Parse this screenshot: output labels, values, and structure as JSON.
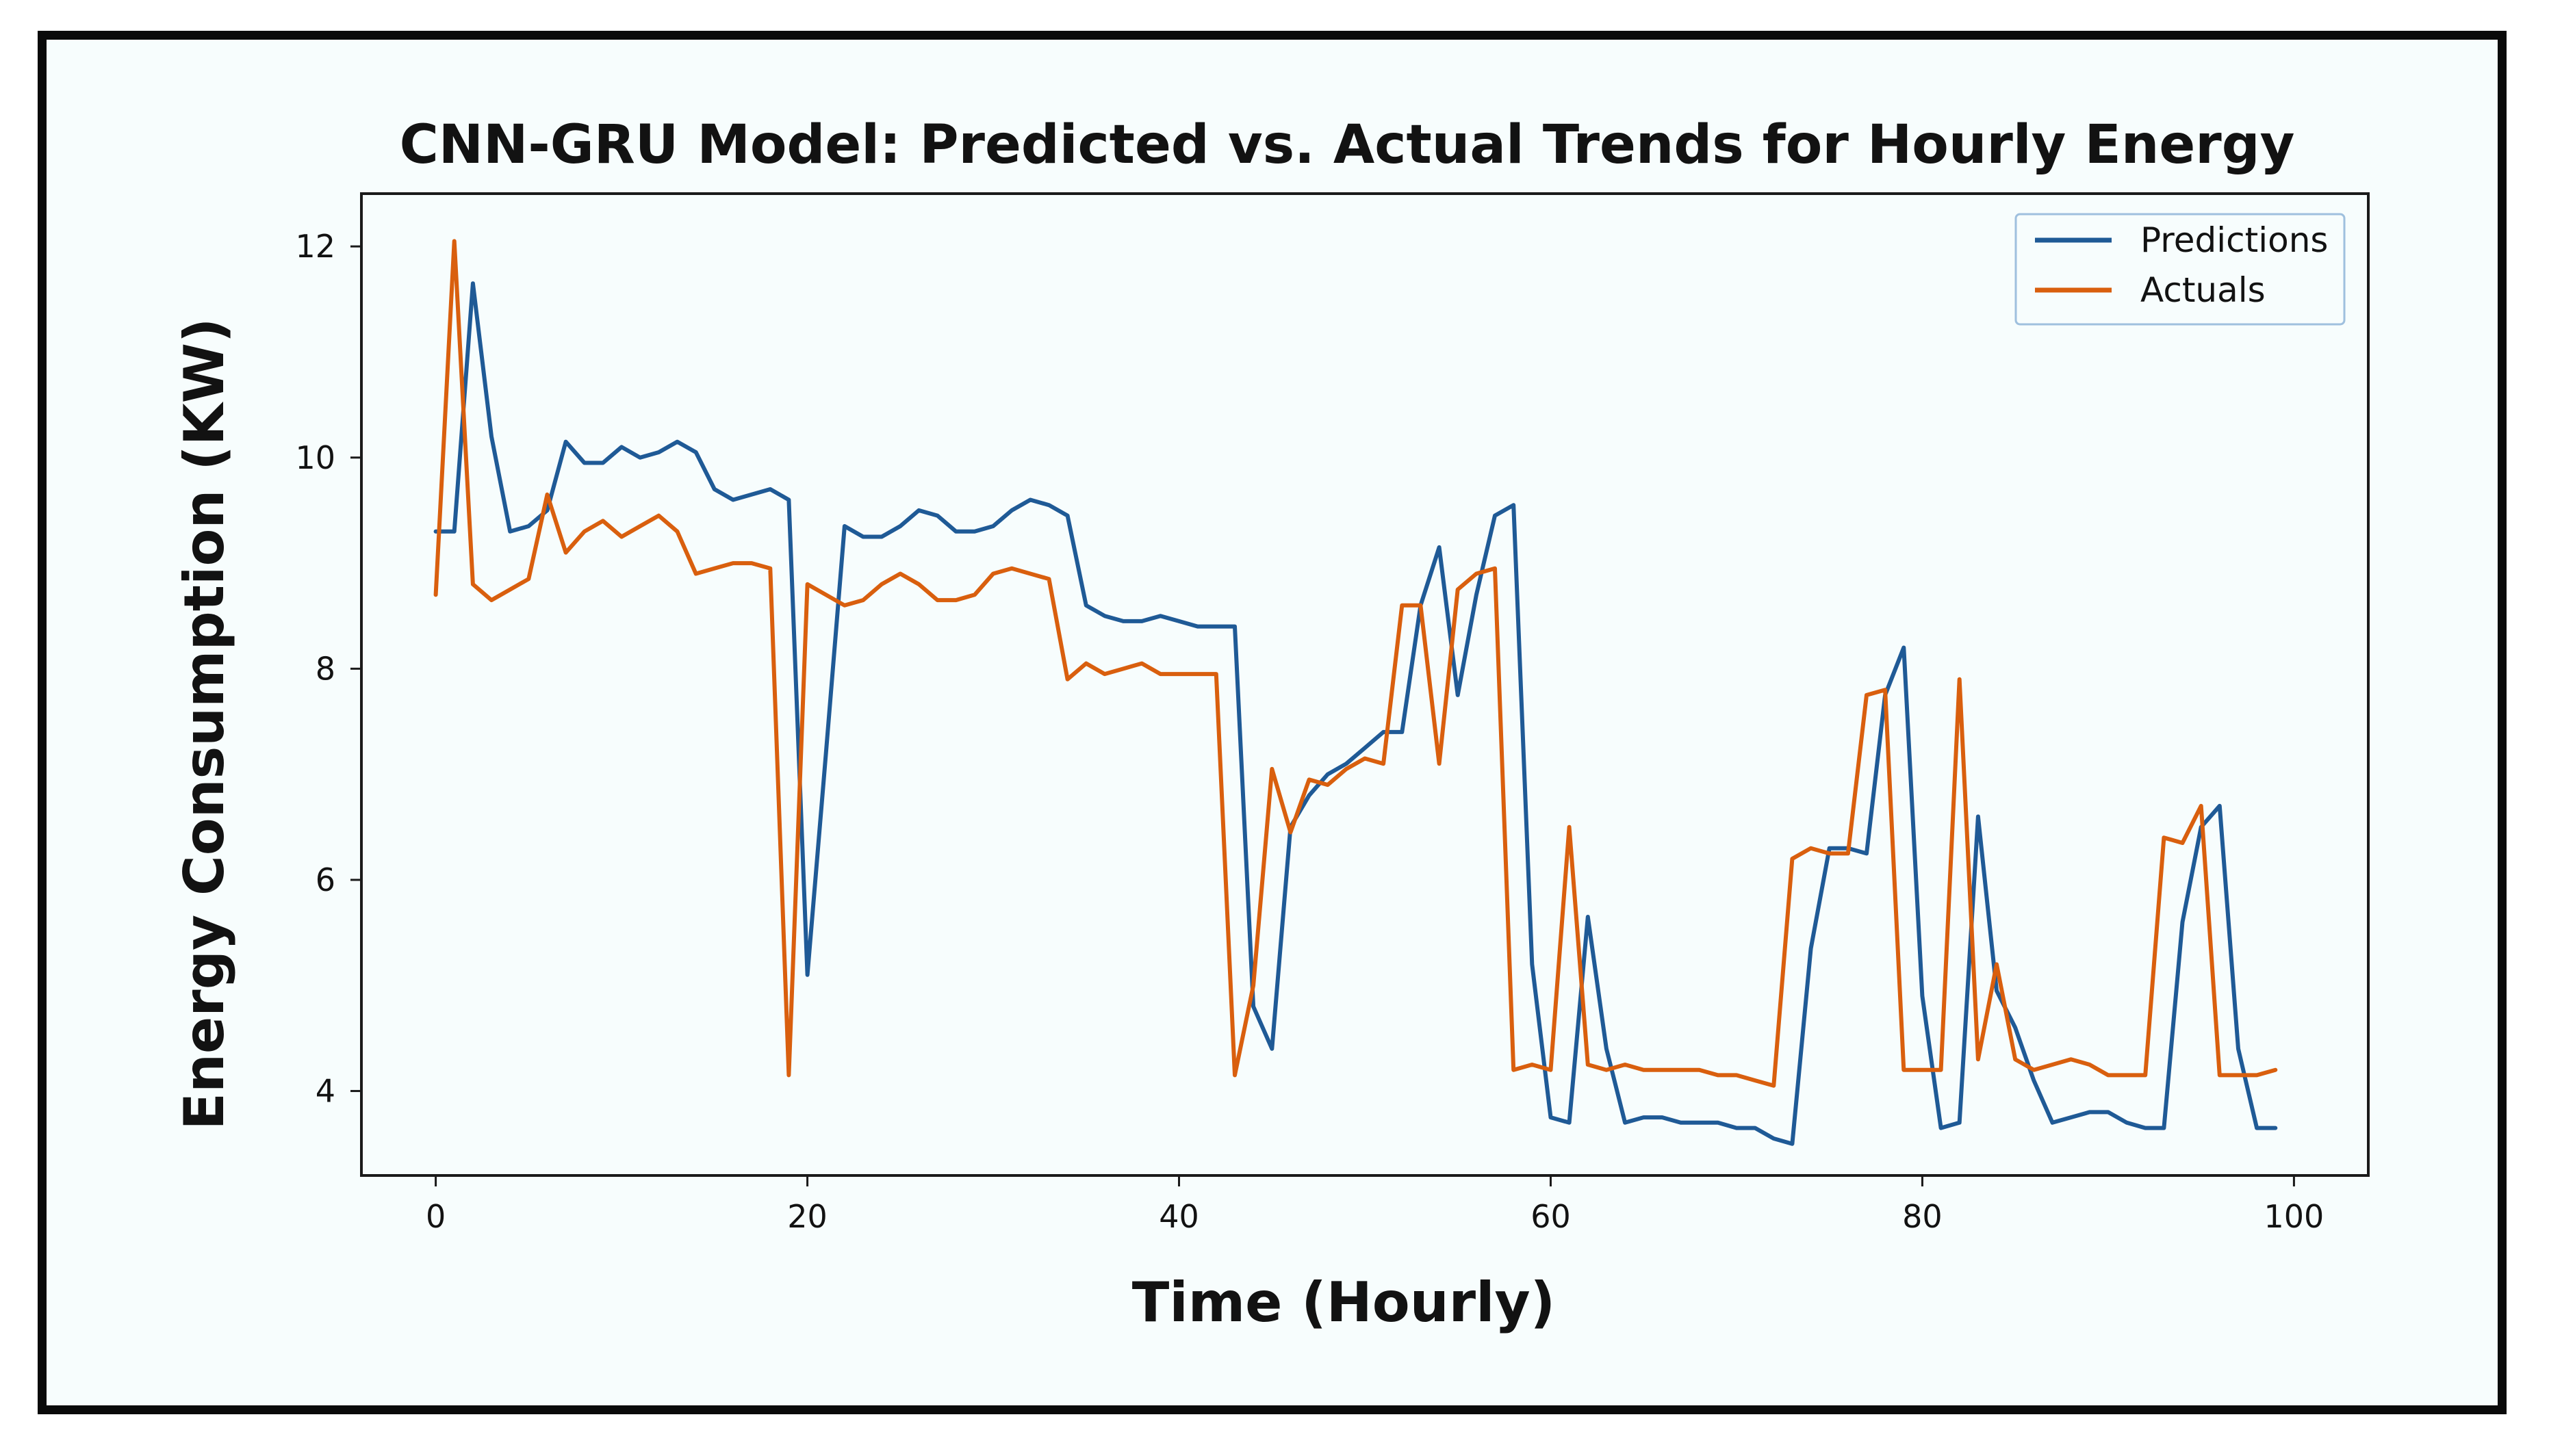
{
  "chart_data": {
    "type": "line",
    "title": "CNN-GRU Model: Predicted vs. Actual Trends for Hourly Energy",
    "xlabel": "Time (Hourly)",
    "ylabel": "Energy Consumption (KW)",
    "xlim": [
      -4,
      104
    ],
    "ylim": [
      3.2,
      12.5
    ],
    "xticks": [
      0,
      20,
      40,
      60,
      80,
      100
    ],
    "yticks": [
      4,
      6,
      8,
      10,
      12
    ],
    "xtick_labels": [
      "0",
      "20",
      "40",
      "60",
      "80",
      "100"
    ],
    "ytick_labels": [
      "4",
      "6",
      "8",
      "10",
      "12"
    ],
    "grid": false,
    "legend_position": "top-right",
    "x": [
      0,
      1,
      2,
      3,
      4,
      5,
      6,
      7,
      8,
      9,
      10,
      11,
      12,
      13,
      14,
      15,
      16,
      17,
      18,
      19,
      20,
      21,
      22,
      23,
      24,
      25,
      26,
      27,
      28,
      29,
      30,
      31,
      32,
      33,
      34,
      35,
      36,
      37,
      38,
      39,
      40,
      41,
      42,
      43,
      44,
      45,
      46,
      47,
      48,
      49,
      50,
      51,
      52,
      53,
      54,
      55,
      56,
      57,
      58,
      59,
      60,
      61,
      62,
      63,
      64,
      65,
      66,
      67,
      68,
      69,
      70,
      71,
      72,
      73,
      74,
      75,
      76,
      77,
      78,
      79,
      80,
      81,
      82,
      83,
      84,
      85,
      86,
      87,
      88,
      89,
      90,
      91,
      92,
      93,
      94,
      95,
      96,
      97,
      98,
      99
    ],
    "series": [
      {
        "name": "Predictions",
        "color": "#1f5a96",
        "values": [
          9.3,
          9.3,
          11.65,
          10.2,
          9.3,
          9.35,
          9.5,
          10.15,
          9.95,
          9.95,
          10.1,
          10.0,
          10.05,
          10.15,
          10.05,
          9.7,
          9.6,
          9.65,
          9.7,
          9.6,
          5.1,
          7.2,
          9.35,
          9.25,
          9.25,
          9.35,
          9.5,
          9.45,
          9.3,
          9.3,
          9.35,
          9.5,
          9.6,
          9.55,
          9.45,
          8.6,
          8.5,
          8.45,
          8.45,
          8.5,
          8.45,
          8.4,
          8.4,
          8.4,
          4.8,
          4.4,
          6.5,
          6.8,
          7.0,
          7.1,
          7.25,
          7.4,
          7.4,
          8.6,
          9.15,
          7.75,
          8.7,
          9.45,
          9.55,
          5.2,
          3.75,
          3.7,
          5.65,
          4.4,
          3.7,
          3.75,
          3.75,
          3.7,
          3.7,
          3.7,
          3.65,
          3.65,
          3.55,
          3.5,
          5.35,
          6.3,
          6.3,
          6.25,
          7.75,
          8.2,
          4.9,
          3.65,
          3.7,
          6.6,
          4.95,
          4.6,
          4.1,
          3.7,
          3.75,
          3.8,
          3.8,
          3.7,
          3.65,
          3.65,
          5.6,
          6.5,
          6.7,
          4.4,
          3.65,
          3.65
        ]
      },
      {
        "name": "Actuals",
        "color": "#d95f0e",
        "values": [
          8.7,
          12.05,
          8.8,
          8.65,
          8.75,
          8.85,
          9.65,
          9.1,
          9.3,
          9.4,
          9.25,
          9.35,
          9.45,
          9.3,
          8.9,
          8.95,
          9.0,
          9.0,
          8.95,
          4.15,
          8.8,
          8.7,
          8.6,
          8.65,
          8.8,
          8.9,
          8.8,
          8.65,
          8.65,
          8.7,
          8.9,
          8.95,
          8.9,
          8.85,
          7.9,
          8.05,
          7.95,
          8.0,
          8.05,
          7.95,
          7.95,
          7.95,
          7.95,
          4.15,
          5.0,
          7.05,
          6.45,
          6.95,
          6.9,
          7.05,
          7.15,
          7.1,
          8.6,
          8.6,
          7.1,
          8.75,
          8.9,
          8.95,
          4.2,
          4.25,
          4.2,
          6.5,
          4.25,
          4.2,
          4.25,
          4.2,
          4.2,
          4.2,
          4.2,
          4.15,
          4.15,
          4.1,
          4.05,
          6.2,
          6.3,
          6.25,
          6.25,
          7.75,
          7.8,
          4.2,
          4.2,
          4.2,
          7.9,
          4.3,
          5.2,
          4.3,
          4.2,
          4.25,
          4.3,
          4.25,
          4.15,
          4.15,
          4.15,
          6.4,
          6.35,
          6.7,
          4.15,
          4.15,
          4.15,
          4.2
        ]
      }
    ]
  }
}
